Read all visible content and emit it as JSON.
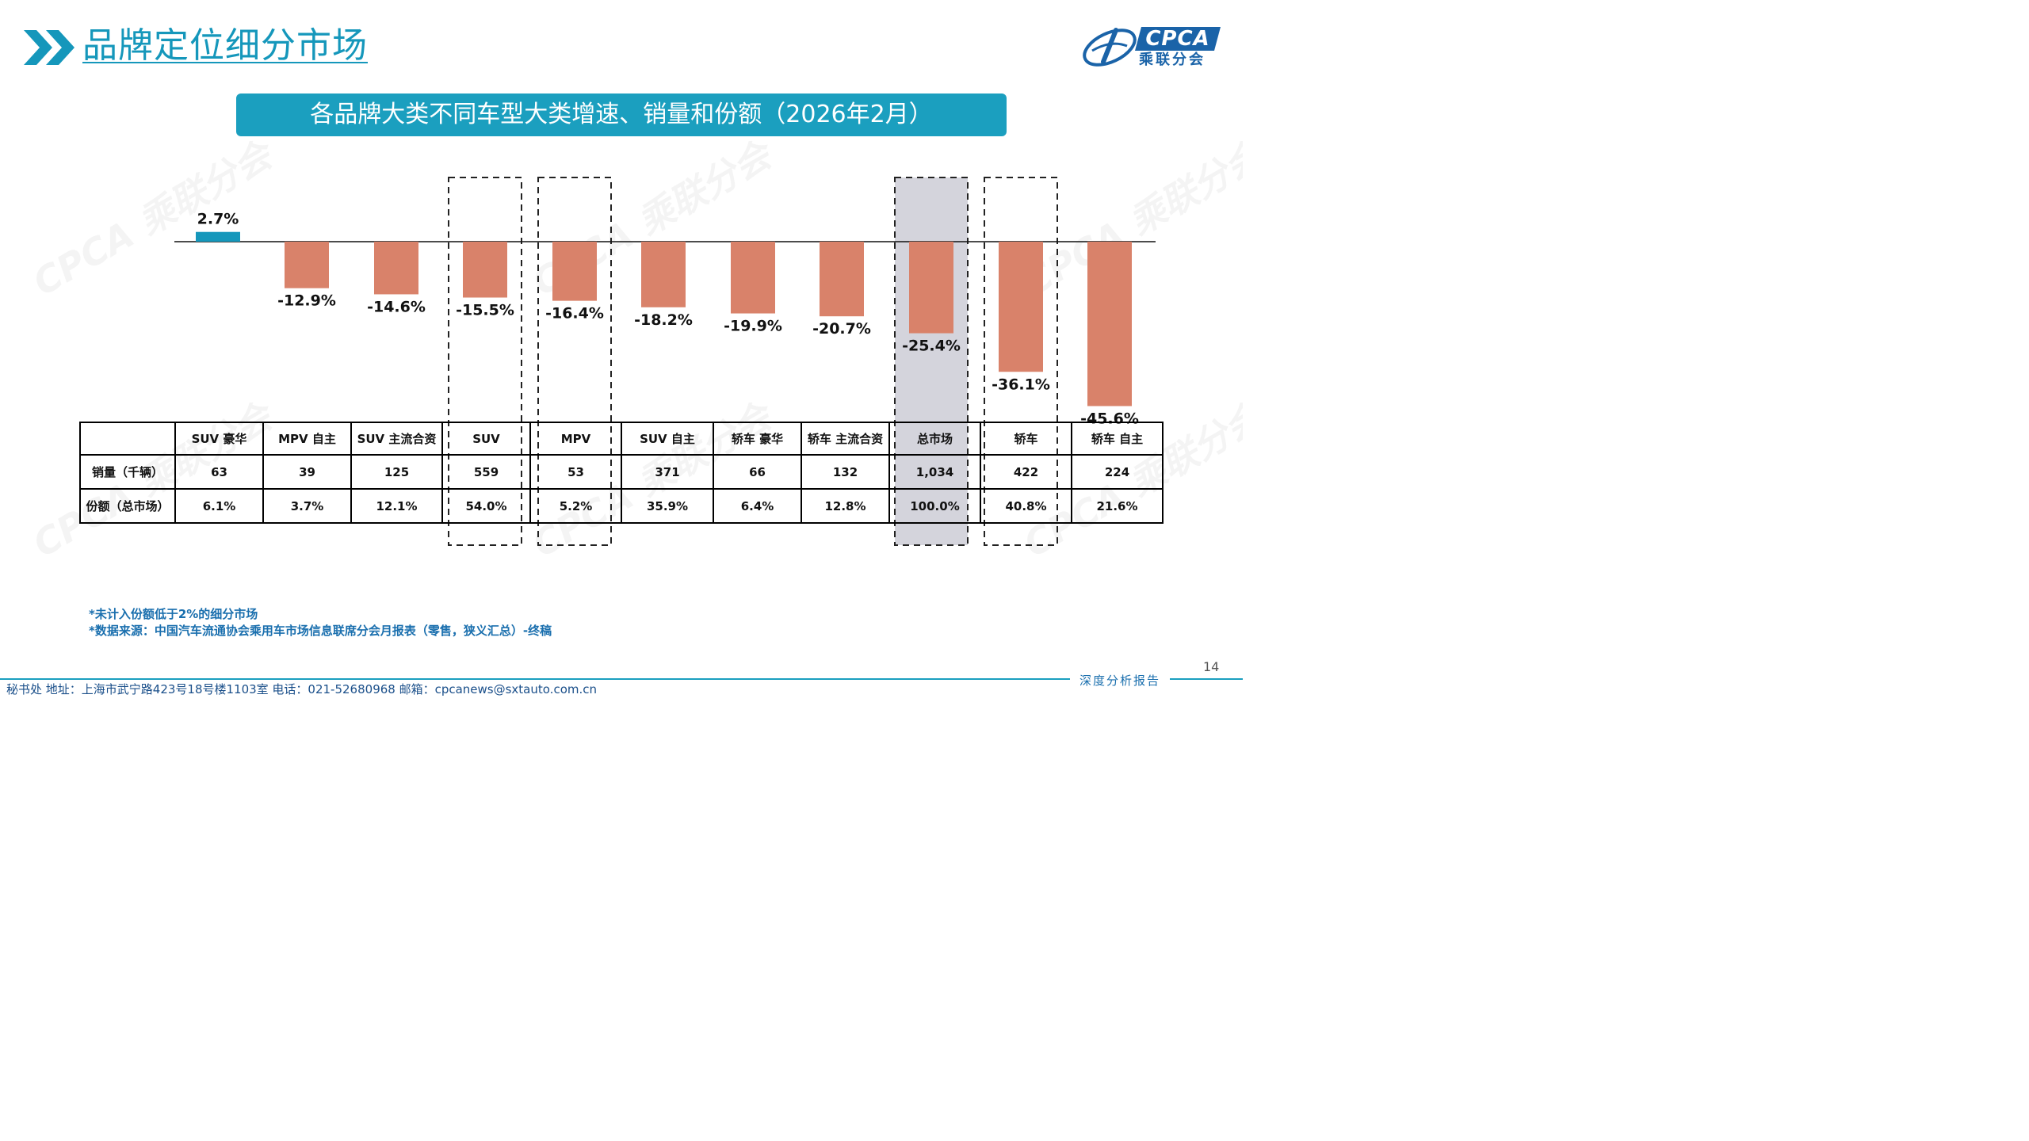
{
  "page": {
    "title": "品牌定位细分市场",
    "logo_text": "CPCA",
    "logo_cn": "乘联分会",
    "watermark_text": "CPCA 乘联分会",
    "chart_title": "各品牌大类不同车型大类增速、销量和份额（2026年2月）",
    "notes": [
      "*未计入份额低于2%的细分市场",
      "*数据来源：中国汽车流通协会乘用车市场信息联席分会月报表（零售，狭义汇总）-终稿"
    ],
    "page_number": "14",
    "footer_tag": "深度分析报告",
    "footer_text": "秘书处   地址：上海市武宁路423号18号楼1103室   电话：021-52680968   邮箱：cpcanews@sxtauto.com.cn"
  },
  "colors": {
    "accent": "#1b9fbf",
    "positive_bar": "#1597bb",
    "negative_bar": "#d9826a",
    "highlight_fill": "#d4d4dc",
    "note_text": "#1a6fae"
  },
  "chart_data": {
    "type": "bar",
    "categories": [
      "SUV 豪华",
      "MPV 自主",
      "SUV 主流合资",
      "SUV",
      "MPV",
      "SUV 自主",
      "轿车 豪华",
      "轿车 主流合资",
      "总市场",
      "轿车",
      "轿车 自主"
    ],
    "values": [
      2.7,
      -12.9,
      -14.6,
      -15.5,
      -16.4,
      -18.2,
      -19.9,
      -20.7,
      -25.4,
      -36.1,
      -45.6
    ],
    "value_labels": [
      "2.7%",
      "-12.9%",
      "-14.6%",
      "-15.5%",
      "-16.4%",
      "-18.2%",
      "-19.9%",
      "-20.7%",
      "-25.4%",
      "-36.1%",
      "-45.6%"
    ],
    "unit": "%",
    "highlighted_dashed": [
      "SUV",
      "MPV",
      "轿车"
    ],
    "highlighted_filled": [
      "总市场"
    ],
    "table": {
      "rows": [
        {
          "label": "销量（千辆）",
          "values": [
            "63",
            "39",
            "125",
            "559",
            "53",
            "371",
            "66",
            "132",
            "1,034",
            "422",
            "224"
          ]
        },
        {
          "label": "份额（总市场）",
          "values": [
            "6.1%",
            "3.7%",
            "12.1%",
            "54.0%",
            "5.2%",
            "35.9%",
            "6.4%",
            "12.8%",
            "100.0%",
            "40.8%",
            "21.6%"
          ]
        }
      ]
    }
  }
}
